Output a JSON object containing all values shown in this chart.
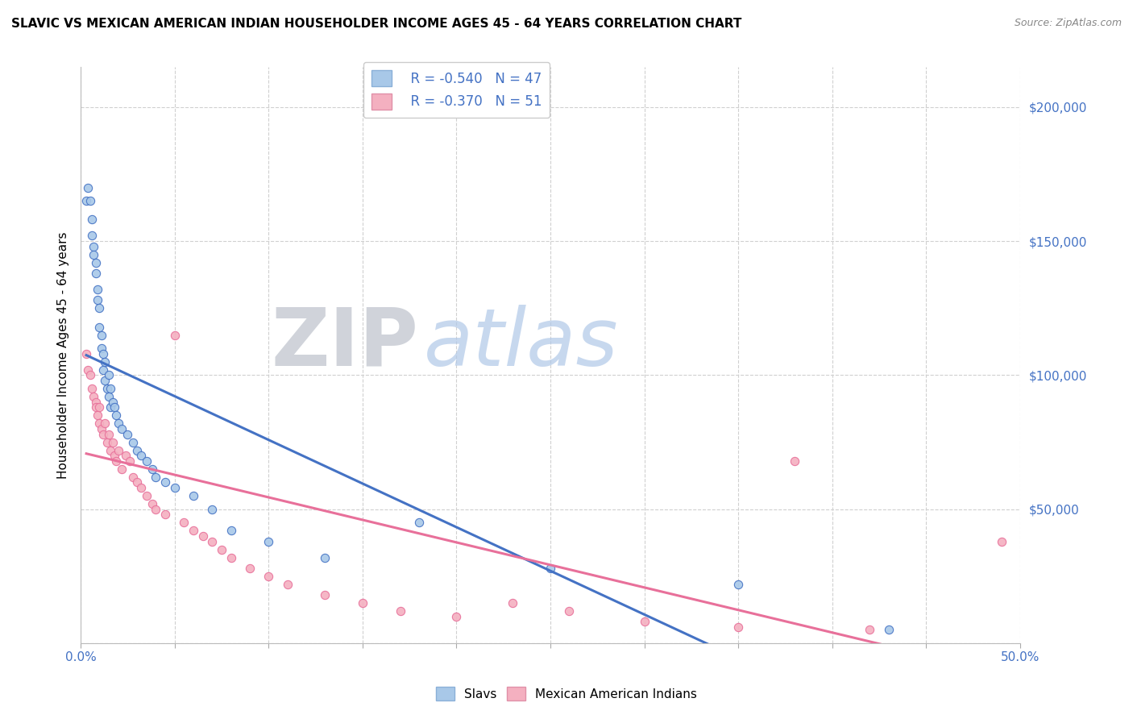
{
  "title": "SLAVIC VS MEXICAN AMERICAN INDIAN HOUSEHOLDER INCOME AGES 45 - 64 YEARS CORRELATION CHART",
  "source": "Source: ZipAtlas.com",
  "ylabel": "Householder Income Ages 45 - 64 years",
  "xlim": [
    0.0,
    0.5
  ],
  "ylim": [
    0,
    215000
  ],
  "xticks": [
    0.0,
    0.05,
    0.1,
    0.15,
    0.2,
    0.25,
    0.3,
    0.35,
    0.4,
    0.45,
    0.5
  ],
  "xticklabels": [
    "0.0%",
    "",
    "",
    "",
    "",
    "",
    "",
    "",
    "",
    "",
    "50.0%"
  ],
  "ytick_vals": [
    0,
    50000,
    100000,
    150000,
    200000
  ],
  "ytick_labels": [
    "",
    "$50,000",
    "$100,000",
    "$150,000",
    "$200,000"
  ],
  "legend_r_slavs": "R = -0.540",
  "legend_n_slavs": "N = 47",
  "legend_r_mexican": "R = -0.370",
  "legend_n_mexican": "N = 51",
  "color_slavs": "#a8c8e8",
  "color_mexican": "#f4b0c0",
  "color_slavs_line": "#4472c4",
  "color_mexican_line": "#e8709a",
  "color_text_blue": "#4472c4",
  "color_grid": "#d0d0d0",
  "slavs_x": [
    0.003,
    0.004,
    0.005,
    0.006,
    0.006,
    0.007,
    0.007,
    0.008,
    0.008,
    0.009,
    0.009,
    0.01,
    0.01,
    0.011,
    0.011,
    0.012,
    0.012,
    0.013,
    0.013,
    0.014,
    0.015,
    0.015,
    0.016,
    0.016,
    0.017,
    0.018,
    0.019,
    0.02,
    0.022,
    0.025,
    0.028,
    0.03,
    0.032,
    0.035,
    0.038,
    0.04,
    0.045,
    0.05,
    0.06,
    0.07,
    0.08,
    0.1,
    0.13,
    0.18,
    0.25,
    0.35,
    0.43
  ],
  "slavs_y": [
    165000,
    170000,
    165000,
    158000,
    152000,
    148000,
    145000,
    142000,
    138000,
    132000,
    128000,
    125000,
    118000,
    115000,
    110000,
    108000,
    102000,
    105000,
    98000,
    95000,
    100000,
    92000,
    88000,
    95000,
    90000,
    88000,
    85000,
    82000,
    80000,
    78000,
    75000,
    72000,
    70000,
    68000,
    65000,
    62000,
    60000,
    58000,
    55000,
    50000,
    42000,
    38000,
    32000,
    45000,
    28000,
    22000,
    5000
  ],
  "mexican_x": [
    0.003,
    0.004,
    0.005,
    0.006,
    0.007,
    0.008,
    0.008,
    0.009,
    0.01,
    0.01,
    0.011,
    0.012,
    0.013,
    0.014,
    0.015,
    0.016,
    0.017,
    0.018,
    0.019,
    0.02,
    0.022,
    0.024,
    0.026,
    0.028,
    0.03,
    0.032,
    0.035,
    0.038,
    0.04,
    0.045,
    0.05,
    0.055,
    0.06,
    0.065,
    0.07,
    0.075,
    0.08,
    0.09,
    0.1,
    0.11,
    0.13,
    0.15,
    0.17,
    0.2,
    0.23,
    0.26,
    0.3,
    0.35,
    0.38,
    0.42,
    0.49
  ],
  "mexican_y": [
    108000,
    102000,
    100000,
    95000,
    92000,
    90000,
    88000,
    85000,
    88000,
    82000,
    80000,
    78000,
    82000,
    75000,
    78000,
    72000,
    75000,
    70000,
    68000,
    72000,
    65000,
    70000,
    68000,
    62000,
    60000,
    58000,
    55000,
    52000,
    50000,
    48000,
    115000,
    45000,
    42000,
    40000,
    38000,
    35000,
    32000,
    28000,
    25000,
    22000,
    18000,
    15000,
    12000,
    10000,
    15000,
    12000,
    8000,
    6000,
    68000,
    5000,
    38000
  ]
}
